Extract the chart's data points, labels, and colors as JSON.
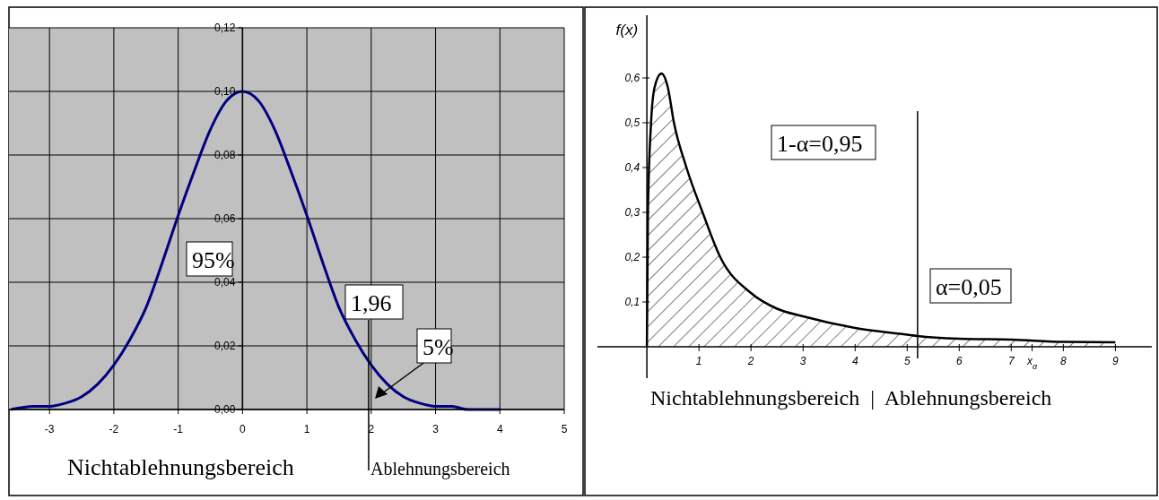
{
  "chart_data": [
    {
      "type": "line",
      "x": [
        -3.6,
        -3.25,
        -3,
        -2.75,
        -2.5,
        -2.25,
        -2,
        -1.75,
        -1.5,
        -1.25,
        -1,
        -0.75,
        -0.5,
        -0.25,
        0,
        0.25,
        0.5,
        0.75,
        1,
        1.25,
        1.5,
        1.75,
        2,
        2.25,
        2.5,
        2.75,
        3,
        3.25,
        3.5,
        4
      ],
      "series": [
        {
          "color": "#000080",
          "values": [
            0.0,
            0.001,
            0.001,
            0.002,
            0.004,
            0.008,
            0.014,
            0.022,
            0.032,
            0.046,
            0.061,
            0.075,
            0.088,
            0.097,
            0.1,
            0.097,
            0.088,
            0.075,
            0.061,
            0.046,
            0.032,
            0.022,
            0.014,
            0.008,
            0.004,
            0.002,
            0.001,
            0.001,
            0.0,
            0.0
          ]
        }
      ],
      "xlim": [
        -3.63,
        5
      ],
      "ylim": [
        0,
        0.12
      ],
      "xticks": [
        -3,
        -2,
        -1,
        0,
        1,
        2,
        3,
        4,
        5
      ],
      "yticks": [
        {
          "value": 0,
          "label": "0,00"
        },
        {
          "value": 0.02,
          "label": "0,02"
        },
        {
          "value": 0.04,
          "label": "0,04"
        },
        {
          "value": 0.06,
          "label": "0,06"
        },
        {
          "value": 0.08,
          "label": "0,08"
        },
        {
          "value": 0.1,
          "label": "0,10"
        },
        {
          "value": 0.12,
          "label": "0,12"
        }
      ],
      "grid": true,
      "ref_lines": [
        {
          "axis": "x",
          "value": 1.96,
          "label": "1,96"
        }
      ],
      "annotations": [
        "95%",
        "5%",
        "Nichtablehnungsbereich",
        "Ablehnungsbereich"
      ]
    },
    {
      "type": "area",
      "x": [
        0,
        0.02,
        0.08,
        0.15,
        0.28,
        0.4,
        0.52,
        0.76,
        1.07,
        1.41,
        2,
        2.5,
        3,
        4,
        5,
        5.2,
        6,
        7,
        8,
        9
      ],
      "series": [
        {
          "color": "#000000",
          "values": [
            0,
            0.3,
            0.5,
            0.58,
            0.61,
            0.58,
            0.5,
            0.4,
            0.3,
            0.2,
            0.12,
            0.085,
            0.068,
            0.042,
            0.027,
            0.024,
            0.018,
            0.016,
            0.011,
            0.01
          ]
        }
      ],
      "xlim": [
        -0.95,
        9.7
      ],
      "ylim": [
        -0.07,
        0.74
      ],
      "xticks": [
        1,
        2,
        3,
        4,
        5,
        6,
        7,
        {
          "value": 7.4,
          "label": "x$_{α}$"
        },
        8,
        9
      ],
      "yticks": [
        {
          "value": 0.1,
          "label": "0,1"
        },
        {
          "value": 0.2,
          "label": "0,2"
        },
        {
          "value": 0.3,
          "label": "0,3"
        },
        {
          "value": 0.4,
          "label": "0,4"
        },
        {
          "value": 0.5,
          "label": "0,5"
        },
        {
          "value": 0.6,
          "label": "0,6"
        }
      ],
      "ylabel": "f(x)",
      "ref_lines": [
        {
          "axis": "x",
          "value": 5.2
        }
      ],
      "annotations": [
        "1-α=0,95",
        "α=0,05",
        "Nichtablehnungsbereich  |  Ablehnungsbereich"
      ]
    }
  ]
}
